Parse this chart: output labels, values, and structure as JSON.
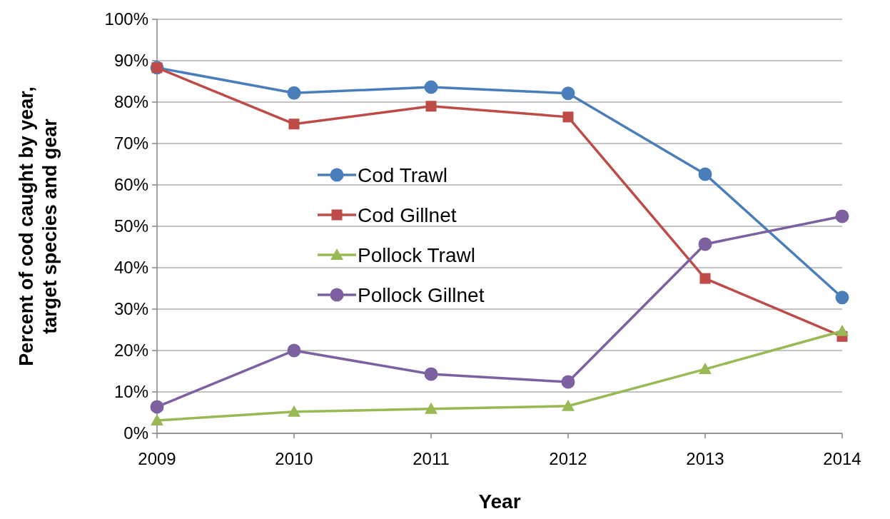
{
  "chart_data": {
    "type": "line",
    "xlabel": "Year",
    "ylabel": "Percent of cod caught by year, target species and gear",
    "x": [
      2009,
      2010,
      2011,
      2012,
      2013,
      2014
    ],
    "xlim": [
      2009,
      2014
    ],
    "xticks": [
      2009,
      2010,
      2011,
      2012,
      2013,
      2014
    ],
    "ylim": [
      0,
      100
    ],
    "yticks": [
      {
        "value": 0,
        "label": "0%"
      },
      {
        "value": 10,
        "label": "10%"
      },
      {
        "value": 20,
        "label": "20%"
      },
      {
        "value": 30,
        "label": "30%"
      },
      {
        "value": 40,
        "label": "40%"
      },
      {
        "value": 50,
        "label": "50%"
      },
      {
        "value": 60,
        "label": "60%"
      },
      {
        "value": 70,
        "label": "70%"
      },
      {
        "value": 80,
        "label": "80%"
      },
      {
        "value": 90,
        "label": "90%"
      },
      {
        "value": 100,
        "label": "100%"
      }
    ],
    "grid": "y",
    "legend": "left",
    "series": [
      {
        "name": "Cod Trawl",
        "color": "#4a7ebb",
        "marker": "circle",
        "values": [
          88.3,
          82.2,
          83.6,
          82.1,
          62.6,
          32.8
        ]
      },
      {
        "name": "Cod Gillnet",
        "color": "#be4b48",
        "marker": "square",
        "values": [
          88.3,
          74.7,
          79.0,
          76.4,
          37.4,
          23.4
        ]
      },
      {
        "name": "Pollock Trawl",
        "color": "#98b954",
        "marker": "triangle",
        "values": [
          3.1,
          5.2,
          5.9,
          6.6,
          15.5,
          24.7
        ]
      },
      {
        "name": "Pollock Gillnet",
        "color": "#7d60a0",
        "marker": "circle",
        "values": [
          6.4,
          20.0,
          14.3,
          12.4,
          45.7,
          52.4
        ]
      }
    ]
  }
}
